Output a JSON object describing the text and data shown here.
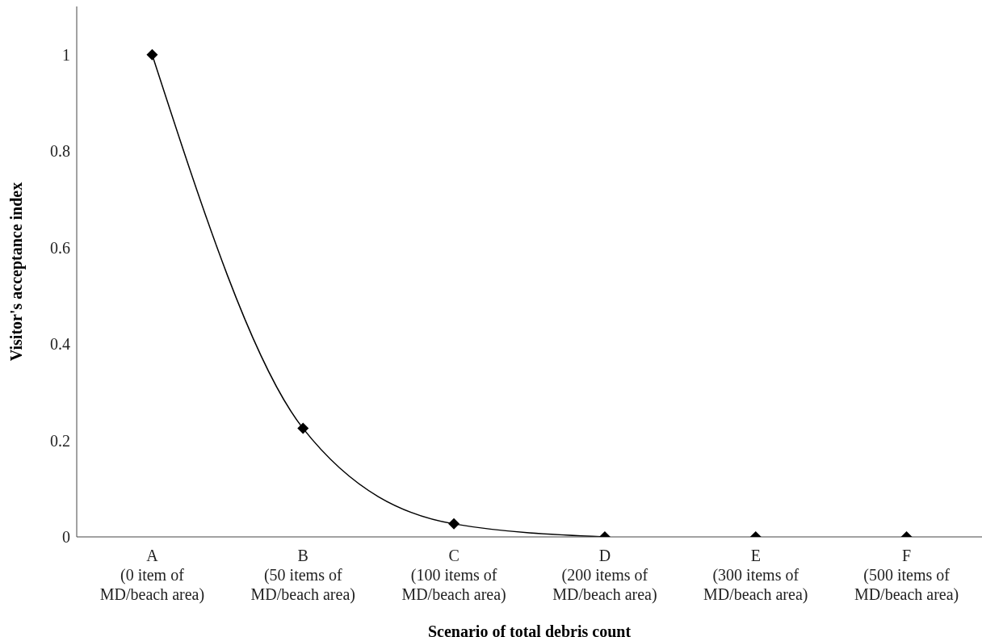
{
  "chart_data": {
    "type": "scatter",
    "xlabel": "Scenario of total debris count",
    "ylabel": "Visitor's acceptance index",
    "categories": [
      "A\n(0 item of\nMD/beach area)",
      "B\n(50 items of\nMD/beach area)",
      "C\n(100 items of\nMD/beach area)",
      "D\n(200 items of\nMD/beach area)",
      "E\n(300 items of\nMD/beach area)",
      "F\n(500 items of\nMD/beach area)"
    ],
    "series": [
      {
        "type": "scatter",
        "color": "#000000",
        "marker": "diamond",
        "values": [
          1,
          0.225,
          0.027,
          0,
          0,
          0
        ]
      },
      {
        "type": "line",
        "color": "#000000",
        "marker": "none",
        "line_style": "solid",
        "values": [
          1,
          0.225,
          0.027,
          0,
          null,
          null
        ]
      }
    ],
    "ylim": [
      0,
      1.1
    ],
    "yticks": [
      0,
      0.2,
      0.4,
      0.6,
      0.8,
      1
    ],
    "grid": false,
    "legend": false
  }
}
